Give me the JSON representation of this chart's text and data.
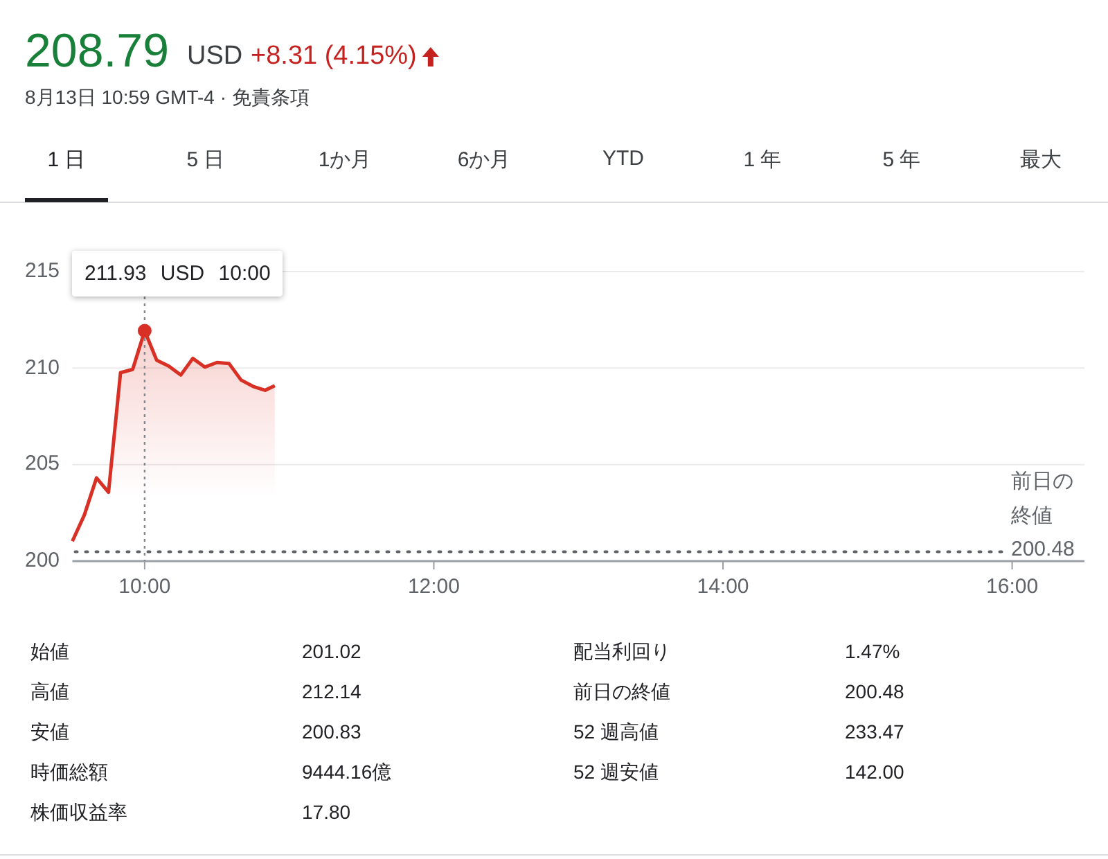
{
  "chart_data": {
    "type": "area",
    "title": "208.79",
    "subtitle": "8月13日 10:59 GMT-4 · 免責条項",
    "x": [
      9.5,
      9.583,
      9.667,
      9.75,
      9.833,
      9.917,
      10.0,
      10.083,
      10.167,
      10.25,
      10.333,
      10.417,
      10.5,
      10.583,
      10.667,
      10.75,
      10.833,
      10.9
    ],
    "series": [
      {
        "color": "#d93025",
        "values": [
          201.03,
          202.39,
          204.31,
          203.57,
          209.76,
          209.93,
          211.93,
          210.41,
          210.1,
          209.64,
          210.5,
          210.05,
          210.29,
          210.24,
          209.38,
          209.05,
          208.85,
          209.09
        ]
      }
    ],
    "xlim": [
      9.5,
      16.5
    ],
    "ylim": [
      200,
      215
    ],
    "xticks": [
      {
        "value": 10,
        "label": "10:00"
      },
      {
        "value": 12,
        "label": "12:00"
      },
      {
        "value": 14,
        "label": "14:00"
      },
      {
        "value": 16,
        "label": "16:00"
      }
    ],
    "yticks": [
      200,
      205,
      210,
      215
    ],
    "grid": "y",
    "ref_lines": [
      {
        "axis": "y",
        "value": 200.48,
        "label": "前日の終値 200.48",
        "line_style": "dotted",
        "color": "#5f6368"
      },
      {
        "axis": "x",
        "value": 10,
        "line_style": "dotted",
        "color": "#80868b"
      }
    ],
    "annotations": [
      "USD",
      "+8.31 (4.15%)",
      "1 日",
      "5 日",
      "1か月",
      "6か月",
      "YTD",
      "1 年",
      "5 年",
      "最大",
      {
        "text": "211.93 USD 10:00",
        "x": 10,
        "y": 211.93
      },
      "始値",
      "201.02",
      "配当利回り",
      "1.47%",
      "高値",
      "212.14",
      "前日の終値",
      "200.48",
      "安値",
      "200.83",
      "52 週高値",
      "233.47",
      "時価総額",
      "9444.16億",
      "52 週安値",
      "142.00",
      "株価収益率",
      "17.80"
    ]
  }
}
